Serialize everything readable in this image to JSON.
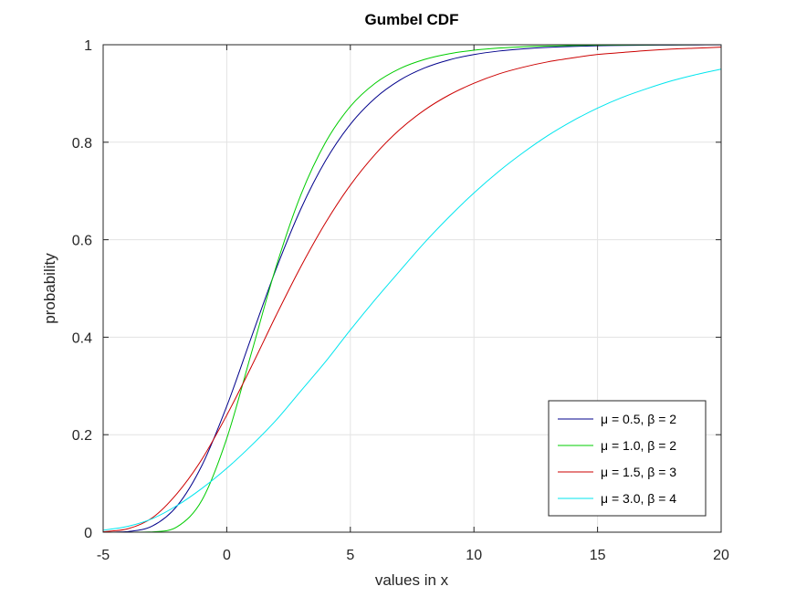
{
  "chart_data": {
    "type": "line",
    "title": "Gumbel CDF",
    "xlabel": "values in x",
    "ylabel": "probability",
    "xlim": [
      -5,
      20
    ],
    "ylim": [
      0,
      1
    ],
    "xticks": [
      -5,
      0,
      5,
      10,
      15,
      20
    ],
    "xtick_labels": [
      "-5",
      "0",
      "5",
      "10",
      "15",
      "20"
    ],
    "yticks": [
      0,
      0.2,
      0.4,
      0.6,
      0.8,
      1
    ],
    "ytick_labels": [
      "0",
      "0.2",
      "0.4",
      "0.6",
      "0.8",
      "1"
    ],
    "grid": true,
    "legend_position": "bottom-right",
    "x": [
      -5,
      -4,
      -3,
      -2,
      -1,
      0,
      1,
      2,
      3,
      4,
      5,
      6,
      7,
      8,
      9,
      10,
      11,
      12,
      13,
      14,
      15,
      16,
      17,
      18,
      19,
      20
    ],
    "series": [
      {
        "name": "μ = 0.5, β = 2",
        "color": "#00008b",
        "values": [
          0.0,
          0.0012,
          0.0129,
          0.0545,
          0.1374,
          0.2585,
          0.4004,
          0.5404,
          0.6634,
          0.7623,
          0.8368,
          0.8903,
          0.9273,
          0.9523,
          0.9689,
          0.9799,
          0.987,
          0.9916,
          0.9946,
          0.9965,
          0.9978,
          0.9986,
          0.9991,
          0.9994,
          0.9996,
          0.9998
        ]
      },
      {
        "name": "μ = 1.0, β = 2",
        "color": "#00cc00",
        "values": [
          0.0,
          0.0,
          0.0006,
          0.0113,
          0.066,
          0.1923,
          0.3679,
          0.5452,
          0.6922,
          0.8,
          0.8734,
          0.9209,
          0.951,
          0.9698,
          0.9815,
          0.9887,
          0.9931,
          0.9958,
          0.9974,
          0.9984,
          0.999,
          0.9994,
          0.9996,
          0.9998,
          0.9999,
          0.9999
        ]
      },
      {
        "name": "μ = 1.5, β = 3",
        "color": "#cc0000",
        "values": [
          0.001,
          0.007,
          0.03,
          0.08,
          0.15,
          0.24,
          0.34,
          0.445,
          0.545,
          0.635,
          0.712,
          0.775,
          0.826,
          0.866,
          0.897,
          0.921,
          0.94,
          0.954,
          0.965,
          0.973,
          0.98,
          0.984,
          0.988,
          0.991,
          0.993,
          0.995
        ]
      },
      {
        "name": "μ = 3.0, β = 4",
        "color": "#00e5ee",
        "values": [
          0.004,
          0.012,
          0.028,
          0.055,
          0.09,
          0.131,
          0.178,
          0.23,
          0.29,
          0.35,
          0.415,
          0.477,
          0.536,
          0.594,
          0.647,
          0.696,
          0.74,
          0.779,
          0.814,
          0.844,
          0.87,
          0.892,
          0.91,
          0.926,
          0.939,
          0.95
        ]
      }
    ]
  }
}
